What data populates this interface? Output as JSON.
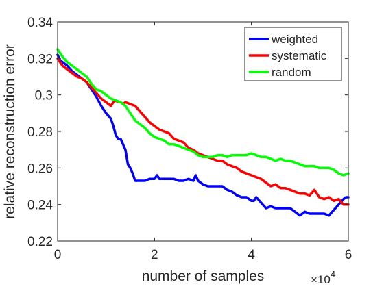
{
  "chart_data": {
    "type": "line",
    "title": "",
    "xlabel": "number of samples",
    "ylabel": "relative reconstruction error",
    "x_exponent_label": {
      "base": "×10",
      "exp": "4"
    },
    "xlim": [
      0,
      60000
    ],
    "ylim": [
      0.22,
      0.34
    ],
    "xticks": [
      0,
      20000,
      40000,
      60000
    ],
    "xtick_labels": [
      "0",
      "2",
      "4",
      "6"
    ],
    "yticks": [
      0.22,
      0.24,
      0.26,
      0.28,
      0.3,
      0.32,
      0.34
    ],
    "ytick_labels": [
      "0.22",
      "0.24",
      "0.26",
      "0.28",
      "0.3",
      "0.32",
      "0.34"
    ],
    "grid": false,
    "legend_position": "top-right",
    "series": [
      {
        "name": "weighted",
        "color": "#0000ff",
        "x": [
          0,
          500,
          1000,
          2000,
          3000,
          4000,
          5000,
          6000,
          7000,
          8000,
          9000,
          10000,
          11000,
          11500,
          12000,
          12500,
          13000,
          13500,
          14000,
          14500,
          15000,
          15500,
          16000,
          16500,
          17000,
          18000,
          19000,
          20000,
          20500,
          21000,
          22000,
          23000,
          24000,
          25000,
          26000,
          27000,
          28000,
          28500,
          29000,
          30000,
          31000,
          32000,
          33000,
          34000,
          35000,
          36000,
          37000,
          38000,
          38500,
          39000,
          40000,
          40500,
          41000,
          42000,
          43000,
          44000,
          45000,
          46000,
          47000,
          48000,
          49000,
          50000,
          51000,
          52000,
          53000,
          54000,
          55000,
          56000,
          57000,
          58000,
          59000,
          59500,
          60000
        ],
        "y": [
          0.322,
          0.319,
          0.318,
          0.316,
          0.313,
          0.311,
          0.309,
          0.307,
          0.303,
          0.299,
          0.294,
          0.29,
          0.287,
          0.283,
          0.278,
          0.276,
          0.276,
          0.273,
          0.27,
          0.262,
          0.26,
          0.257,
          0.253,
          0.253,
          0.253,
          0.253,
          0.254,
          0.254,
          0.256,
          0.254,
          0.254,
          0.254,
          0.254,
          0.253,
          0.253,
          0.254,
          0.253,
          0.256,
          0.253,
          0.251,
          0.25,
          0.25,
          0.25,
          0.25,
          0.248,
          0.247,
          0.245,
          0.244,
          0.244,
          0.244,
          0.242,
          0.242,
          0.244,
          0.241,
          0.238,
          0.239,
          0.238,
          0.238,
          0.238,
          0.238,
          0.236,
          0.234,
          0.236,
          0.235,
          0.235,
          0.235,
          0.235,
          0.234,
          0.237,
          0.24,
          0.243,
          0.244,
          0.244
        ]
      },
      {
        "name": "systematic",
        "color": "#ff0000",
        "x": [
          0,
          500,
          1000,
          2000,
          3000,
          4000,
          5000,
          6000,
          7000,
          8000,
          9000,
          10000,
          11000,
          11500,
          12000,
          12500,
          13000,
          13500,
          14000,
          15000,
          16000,
          17000,
          18000,
          19000,
          20000,
          21000,
          22000,
          23000,
          24000,
          25000,
          26000,
          27000,
          28000,
          29000,
          30000,
          31000,
          32000,
          33000,
          34000,
          35000,
          36000,
          37000,
          38000,
          39000,
          40000,
          41000,
          42000,
          43000,
          44000,
          45000,
          46000,
          47000,
          48000,
          49000,
          50000,
          51000,
          52000,
          53000,
          54000,
          55000,
          56000,
          57000,
          58000,
          59000,
          60000
        ],
        "y": [
          0.32,
          0.318,
          0.316,
          0.314,
          0.312,
          0.31,
          0.309,
          0.307,
          0.304,
          0.301,
          0.298,
          0.296,
          0.294,
          0.296,
          0.297,
          0.296,
          0.296,
          0.295,
          0.296,
          0.295,
          0.294,
          0.291,
          0.288,
          0.285,
          0.283,
          0.281,
          0.28,
          0.279,
          0.276,
          0.275,
          0.274,
          0.271,
          0.27,
          0.268,
          0.267,
          0.266,
          0.265,
          0.264,
          0.264,
          0.262,
          0.261,
          0.26,
          0.258,
          0.257,
          0.256,
          0.255,
          0.254,
          0.252,
          0.25,
          0.251,
          0.249,
          0.249,
          0.248,
          0.247,
          0.246,
          0.246,
          0.245,
          0.248,
          0.244,
          0.243,
          0.244,
          0.242,
          0.243,
          0.24,
          0.24
        ]
      },
      {
        "name": "random",
        "color": "#00ff00",
        "x": [
          0,
          500,
          1000,
          2000,
          3000,
          4000,
          5000,
          6000,
          7000,
          8000,
          9000,
          10000,
          11000,
          12000,
          13000,
          14000,
          15000,
          16000,
          17000,
          18000,
          19000,
          20000,
          21000,
          22000,
          23000,
          24000,
          25000,
          26000,
          27000,
          28000,
          29000,
          30000,
          31000,
          32000,
          33000,
          34000,
          35000,
          36000,
          37000,
          38000,
          39000,
          40000,
          41000,
          42000,
          43000,
          44000,
          45000,
          46000,
          47000,
          48000,
          49000,
          50000,
          51000,
          52000,
          53000,
          54000,
          55000,
          56000,
          57000,
          58000,
          59000,
          60000
        ],
        "y": [
          0.325,
          0.323,
          0.321,
          0.318,
          0.316,
          0.314,
          0.312,
          0.31,
          0.306,
          0.303,
          0.302,
          0.3,
          0.298,
          0.297,
          0.296,
          0.294,
          0.29,
          0.286,
          0.284,
          0.282,
          0.279,
          0.277,
          0.276,
          0.275,
          0.273,
          0.273,
          0.272,
          0.271,
          0.27,
          0.269,
          0.267,
          0.266,
          0.266,
          0.266,
          0.267,
          0.267,
          0.266,
          0.267,
          0.267,
          0.267,
          0.267,
          0.268,
          0.267,
          0.266,
          0.266,
          0.265,
          0.264,
          0.265,
          0.264,
          0.264,
          0.263,
          0.262,
          0.261,
          0.261,
          0.261,
          0.26,
          0.26,
          0.26,
          0.259,
          0.257,
          0.256,
          0.257
        ]
      }
    ]
  }
}
